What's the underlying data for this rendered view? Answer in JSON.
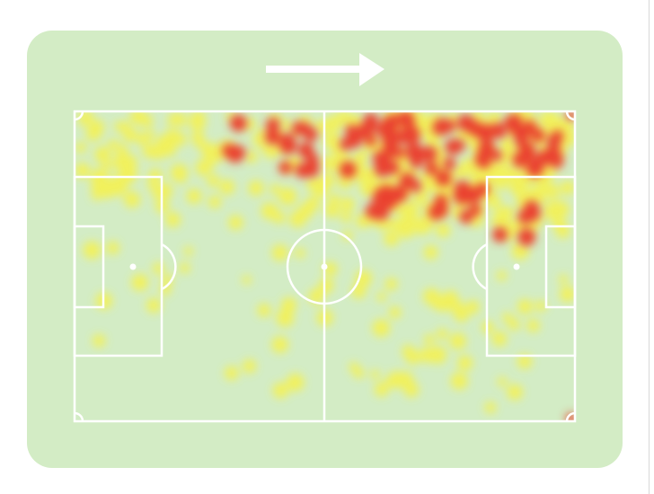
{
  "heatmap": {
    "direction_of_play": "right",
    "colors": {
      "background": "#d3ecc5",
      "lines": "#ffffff",
      "low": "#f7f24a",
      "high": "#ea3f2f"
    },
    "icons": [
      "arrow-right-icon"
    ]
  }
}
